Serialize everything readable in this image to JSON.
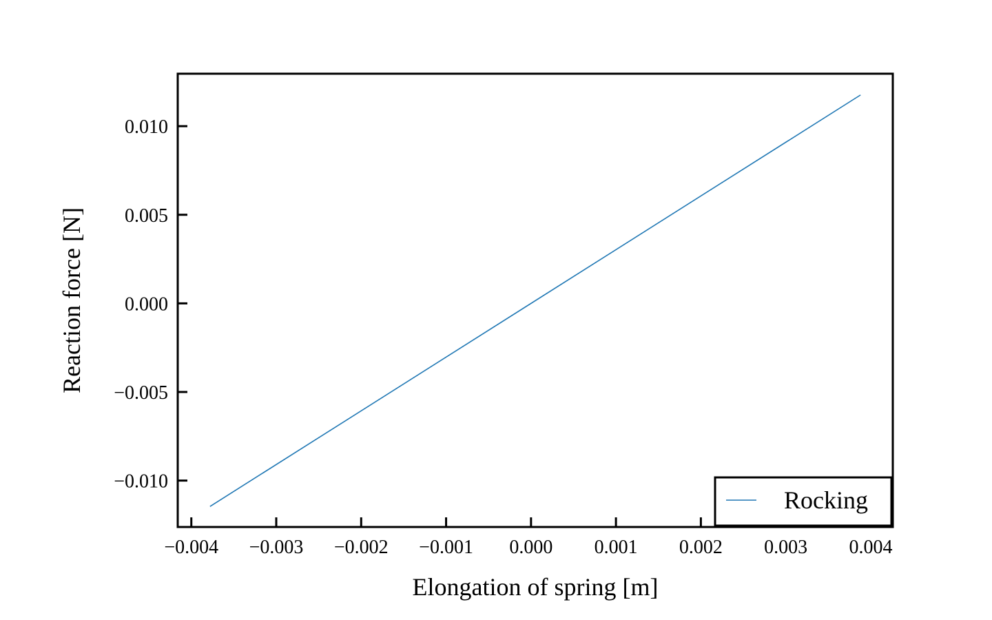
{
  "chart_data": {
    "type": "line",
    "title": "",
    "xlabel": "Elongation of spring [m]",
    "ylabel": "Reaction force [N]",
    "xlim": [
      -0.00416,
      0.00426
    ],
    "ylim": [
      -0.01262,
      0.01296
    ],
    "xticks": [
      -0.004,
      -0.003,
      -0.002,
      -0.001,
      0.0,
      0.001,
      0.002,
      0.003,
      0.004
    ],
    "xtick_labels": [
      "−0.004",
      "−0.003",
      "−0.002",
      "−0.001",
      "0.000",
      "0.001",
      "0.002",
      "0.003",
      "0.004"
    ],
    "yticks": [
      -0.01,
      -0.005,
      0.0,
      0.005,
      0.01
    ],
    "ytick_labels": [
      "−0.010",
      "−0.005",
      "0.000",
      "0.005",
      "0.010"
    ],
    "grid": false,
    "legend_position": "lower-right",
    "series": [
      {
        "name": "Rocking",
        "color": "#1f77b4",
        "x": [
          -0.00378,
          0.00388
        ],
        "y": [
          -0.01146,
          0.01176
        ]
      }
    ]
  }
}
